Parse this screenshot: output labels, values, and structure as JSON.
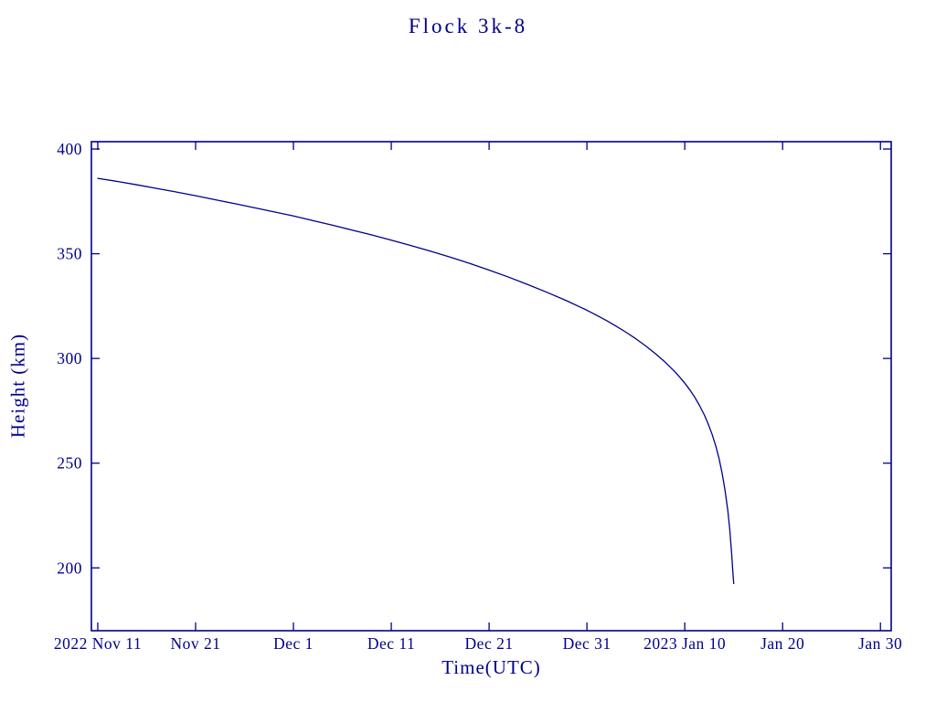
{
  "page": {
    "background": "#ffffff",
    "accent_color": "#00008B"
  },
  "chart_data": {
    "type": "line",
    "title": "Flock 3k-8",
    "xlabel": "Time(UTC)",
    "ylabel": "Height (km)",
    "color": "#00008B",
    "grid": false,
    "legend": "none",
    "xlim_days": [
      -0.65,
      81.1
    ],
    "ylim": [
      170,
      403.5
    ],
    "y_ticks": [
      200,
      250,
      300,
      350,
      400
    ],
    "x_ticks": [
      {
        "day": 0,
        "label": "2022 Nov 11"
      },
      {
        "day": 10,
        "label": "Nov 21"
      },
      {
        "day": 20,
        "label": "Dec 1"
      },
      {
        "day": 30,
        "label": "Dec 11"
      },
      {
        "day": 40,
        "label": "Dec 21"
      },
      {
        "day": 50,
        "label": "Dec 31"
      },
      {
        "day": 60,
        "label": "2023 Jan 10"
      },
      {
        "day": 70,
        "label": "Jan 20"
      },
      {
        "day": 80,
        "label": "Jan 30"
      }
    ],
    "x_unit": "days since 2022 Nov 11",
    "series": [
      {
        "name": "orbital-height-km",
        "points": [
          [
            0,
            386.0
          ],
          [
            2,
            384.5
          ],
          [
            4,
            382.9
          ],
          [
            6,
            381.2
          ],
          [
            8,
            379.5
          ],
          [
            10,
            377.7
          ],
          [
            12,
            375.8
          ],
          [
            14,
            373.9
          ],
          [
            16,
            372.0
          ],
          [
            18,
            370.0
          ],
          [
            20,
            368.0
          ],
          [
            22,
            365.8
          ],
          [
            24,
            363.6
          ],
          [
            26,
            361.3
          ],
          [
            28,
            359.0
          ],
          [
            30,
            356.5
          ],
          [
            32,
            353.9
          ],
          [
            34,
            351.2
          ],
          [
            36,
            348.4
          ],
          [
            38,
            345.4
          ],
          [
            40,
            342.2
          ],
          [
            42,
            338.8
          ],
          [
            44,
            335.2
          ],
          [
            46,
            331.4
          ],
          [
            48,
            327.4
          ],
          [
            50,
            323.0
          ],
          [
            51,
            320.6
          ],
          [
            52,
            318.1
          ],
          [
            53,
            315.4
          ],
          [
            54,
            312.5
          ],
          [
            55,
            309.4
          ],
          [
            56,
            306.0
          ],
          [
            57,
            302.3
          ],
          [
            58,
            298.2
          ],
          [
            59,
            293.6
          ],
          [
            59.5,
            291.0
          ],
          [
            60,
            288.2
          ],
          [
            60.5,
            285.1
          ],
          [
            61,
            281.6
          ],
          [
            61.5,
            277.6
          ],
          [
            62,
            273.0
          ],
          [
            62.4,
            268.7
          ],
          [
            62.8,
            263.7
          ],
          [
            63.2,
            257.7
          ],
          [
            63.5,
            252.3
          ],
          [
            63.8,
            245.7
          ],
          [
            64.1,
            237.6
          ],
          [
            64.4,
            227.2
          ],
          [
            64.6,
            218.2
          ],
          [
            64.8,
            206.5
          ],
          [
            64.9,
            199.0
          ],
          [
            65.0,
            192.5
          ]
        ]
      }
    ]
  }
}
